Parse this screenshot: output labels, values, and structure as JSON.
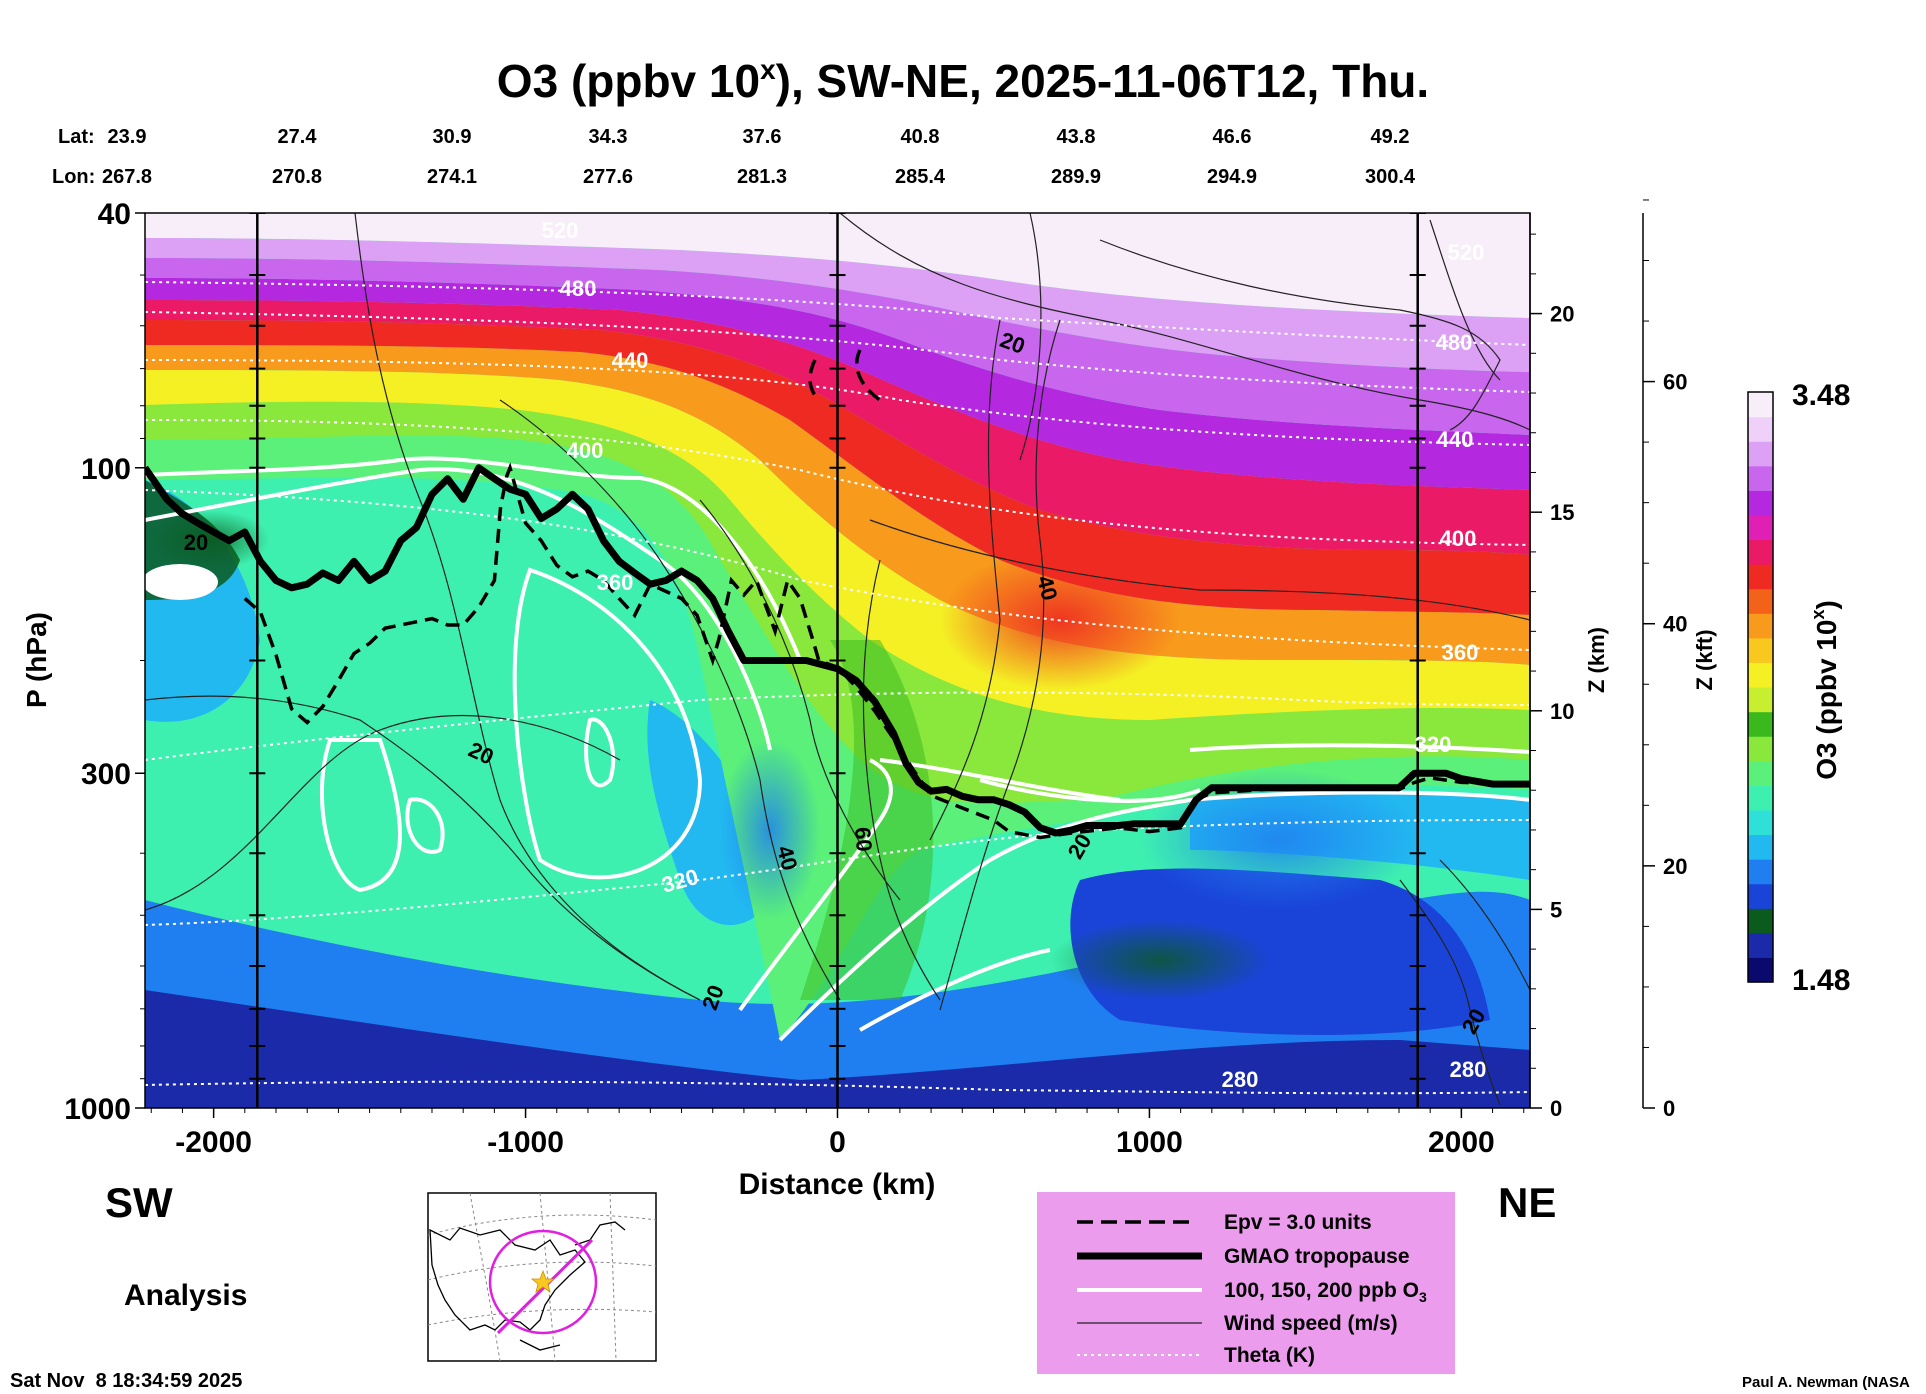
{
  "chart_data": {
    "type": "heatmap",
    "title_main": "O3 (ppbv 10",
    "title_sup": "x",
    "title_rest": "), SW-NE, 2025-11-06T12, Thu.",
    "lat_label": "Lat:",
    "lon_label": "Lon:",
    "lat_values": [
      "23.9",
      "27.4",
      "30.9",
      "34.3",
      "37.6",
      "40.8",
      "43.8",
      "46.6",
      "49.2"
    ],
    "lon_values": [
      "267.8",
      "270.8",
      "274.1",
      "277.6",
      "281.3",
      "285.4",
      "289.9",
      "294.9",
      "300.4"
    ],
    "xlabel": "Distance (km)",
    "x_ticks": [
      -2000,
      -1000,
      0,
      1000,
      2000
    ],
    "x_tick_labels": [
      "-2000",
      "-1000",
      "0",
      "1000",
      "2000"
    ],
    "xlim": [
      -2220,
      2220
    ],
    "ylabel": "P (hPa)",
    "y_ticks": [
      40,
      100,
      300,
      1000
    ],
    "y_tick_labels": [
      "40",
      "100",
      "300",
      "1000"
    ],
    "ylim": [
      1000,
      40
    ],
    "yscale": "log",
    "z_km_label": "Z (km)",
    "z_km_ticks": [
      0,
      5,
      10,
      15,
      20
    ],
    "z_km_tick_labels": [
      "0",
      "5",
      "10",
      "15",
      "20"
    ],
    "z_kft_label": "Z (kft)",
    "z_kft_ticks": [
      0,
      20,
      40,
      60
    ],
    "z_kft_tick_labels": [
      "0",
      "20",
      "40",
      "60"
    ],
    "colorbar": {
      "label_main": "O3 (ppbv 10",
      "label_sup": "x",
      "label_rest": ")",
      "max_label": "3.48",
      "min_label": "1.48",
      "range": [
        1.48,
        3.48
      ],
      "colors": [
        "#0a0a6e",
        "#1a2aa8",
        "#0b5a1e",
        "#1a44d8",
        "#1f7ff0",
        "#22b8f0",
        "#2ee0d8",
        "#3ef0b0",
        "#5af07a",
        "#8ae83c",
        "#3ab81c",
        "#c8ee30",
        "#f4f024",
        "#f8c81e",
        "#f89a1c",
        "#f4621a",
        "#ee2a22",
        "#ea1a66",
        "#e020b4",
        "#b428e0",
        "#c866ee",
        "#dca0f4",
        "#eed0f8",
        "#f8eefa"
      ]
    },
    "theta_labels": [
      "520",
      "480",
      "440",
      "400",
      "360",
      "320",
      "280"
    ],
    "wind_labels": [
      "20",
      "40",
      "60"
    ],
    "vertical_lines_km": [
      -1860,
      0,
      1860
    ],
    "tropopause": [
      [
        -2220,
        100
      ],
      [
        -2150,
        112
      ],
      [
        -2100,
        118
      ],
      [
        -2050,
        122
      ],
      [
        -2000,
        126
      ],
      [
        -1950,
        130
      ],
      [
        -1900,
        126
      ],
      [
        -1850,
        140
      ],
      [
        -1800,
        150
      ],
      [
        -1750,
        154
      ],
      [
        -1700,
        152
      ],
      [
        -1650,
        146
      ],
      [
        -1600,
        150
      ],
      [
        -1550,
        140
      ],
      [
        -1500,
        150
      ],
      [
        -1450,
        145
      ],
      [
        -1400,
        130
      ],
      [
        -1350,
        124
      ],
      [
        -1300,
        110
      ],
      [
        -1250,
        104
      ],
      [
        -1200,
        112
      ],
      [
        -1150,
        100
      ],
      [
        -1100,
        104
      ],
      [
        -1050,
        108
      ],
      [
        -1000,
        110
      ],
      [
        -950,
        120
      ],
      [
        -900,
        116
      ],
      [
        -850,
        110
      ],
      [
        -800,
        116
      ],
      [
        -750,
        130
      ],
      [
        -700,
        140
      ],
      [
        -650,
        146
      ],
      [
        -600,
        152
      ],
      [
        -550,
        150
      ],
      [
        -500,
        145
      ],
      [
        -450,
        150
      ],
      [
        -400,
        160
      ],
      [
        -350,
        180
      ],
      [
        -300,
        200
      ],
      [
        -100,
        200
      ],
      [
        0,
        206
      ],
      [
        60,
        215
      ],
      [
        120,
        232
      ],
      [
        180,
        260
      ],
      [
        220,
        290
      ],
      [
        260,
        310
      ],
      [
        300,
        320
      ],
      [
        350,
        318
      ],
      [
        400,
        326
      ],
      [
        450,
        330
      ],
      [
        500,
        330
      ],
      [
        550,
        336
      ],
      [
        600,
        345
      ],
      [
        650,
        365
      ],
      [
        700,
        372
      ],
      [
        750,
        368
      ],
      [
        800,
        362
      ],
      [
        850,
        362
      ],
      [
        900,
        362
      ],
      [
        950,
        360
      ],
      [
        1000,
        360
      ],
      [
        1100,
        360
      ],
      [
        1150,
        330
      ],
      [
        1200,
        316
      ],
      [
        1400,
        316
      ],
      [
        1800,
        316
      ],
      [
        1850,
        300
      ],
      [
        1900,
        300
      ],
      [
        1950,
        300
      ],
      [
        2000,
        306
      ],
      [
        2100,
        312
      ],
      [
        2220,
        312
      ]
    ],
    "epv_line": [
      [
        -1900,
        160
      ],
      [
        -1850,
        168
      ],
      [
        -1800,
        196
      ],
      [
        -1750,
        238
      ],
      [
        -1700,
        250
      ],
      [
        -1650,
        236
      ],
      [
        -1600,
        215
      ],
      [
        -1550,
        195
      ],
      [
        -1500,
        188
      ],
      [
        -1450,
        178
      ],
      [
        -1400,
        176
      ],
      [
        -1350,
        174
      ],
      [
        -1300,
        172
      ],
      [
        -1250,
        176
      ],
      [
        -1200,
        176
      ],
      [
        -1150,
        165
      ],
      [
        -1100,
        150
      ],
      [
        -1080,
        115
      ],
      [
        -1060,
        103
      ],
      [
        -1050,
        100
      ],
      [
        -1000,
        122
      ],
      [
        -950,
        130
      ],
      [
        -900,
        142
      ],
      [
        -850,
        148
      ],
      [
        -800,
        145
      ],
      [
        -750,
        150
      ],
      [
        -700,
        160
      ],
      [
        -650,
        170
      ],
      [
        -600,
        152
      ],
      [
        -550,
        156
      ],
      [
        -500,
        160
      ],
      [
        -450,
        170
      ],
      [
        -400,
        200
      ],
      [
        -380,
        185
      ],
      [
        -340,
        150
      ],
      [
        -300,
        158
      ],
      [
        -260,
        150
      ],
      [
        -200,
        180
      ],
      [
        -160,
        150
      ],
      [
        -120,
        160
      ],
      [
        -80,
        185
      ],
      [
        -60,
        200
      ],
      [
        0,
        205
      ],
      [
        60,
        220
      ],
      [
        120,
        240
      ],
      [
        180,
        265
      ],
      [
        240,
        295
      ],
      [
        300,
        325
      ],
      [
        400,
        340
      ],
      [
        500,
        355
      ],
      [
        550,
        370
      ],
      [
        650,
        378
      ],
      [
        750,
        372
      ],
      [
        900,
        365
      ],
      [
        1000,
        370
      ],
      [
        1100,
        365
      ],
      [
        1150,
        330
      ],
      [
        1200,
        322
      ],
      [
        1500,
        315
      ],
      [
        1800,
        318
      ],
      [
        1850,
        310
      ],
      [
        1900,
        305
      ],
      [
        2000,
        310
      ],
      [
        2220,
        312
      ]
    ],
    "legend_entries": [
      "Epv = 3.0 units",
      "GMAO tropopause",
      "100, 150, 200 ppb O",
      "Wind speed (m/s)",
      "Theta (K)"
    ],
    "legend_sub_3": "3",
    "direction_left": "SW",
    "direction_right": "NE",
    "analysis_label": "Analysis",
    "timestamp": "Sat Nov  8 18:34:59 2025",
    "credit": "Paul A. Newman (NASA"
  }
}
